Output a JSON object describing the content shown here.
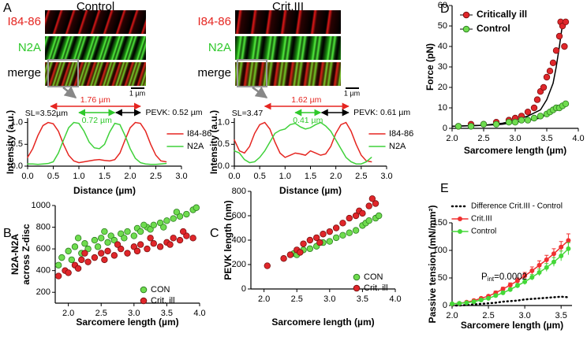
{
  "panel_a": {
    "letter": "A",
    "images": [
      {
        "title": "Control",
        "channels": [
          "I84-86",
          "N2A",
          "merge"
        ],
        "scale_bar": "1 µm"
      },
      {
        "title": "Crit.III",
        "channels": [
          "I84-86",
          "N2A",
          "merge"
        ],
        "scale_bar": "1 µm"
      }
    ]
  },
  "chart_data": [
    {
      "type": "line",
      "xlabel": "Distance (µm)",
      "ylabel": "Intensity (a.u.)",
      "xlim": [
        0,
        3.0
      ],
      "ylim": [
        0,
        1.1
      ],
      "xticks": [
        {
          "value": 0,
          "label": "0.0"
        },
        0.5,
        {
          "value": 1,
          "label": "1.0"
        },
        1.5,
        {
          "value": 2,
          "label": "2.0"
        },
        2.5,
        {
          "value": 3,
          "label": "3.0"
        }
      ],
      "yticks": [
        {
          "value": 0,
          "label": "0.0"
        },
        0.5,
        {
          "value": 1,
          "label": "1.0"
        }
      ],
      "annotations": [
        "1.76 µm",
        "SL=3.52µm",
        "0.72 µm",
        "PEVK: 0.52 µm"
      ],
      "x": [
        0,
        0.1,
        0.2,
        0.3,
        0.4,
        0.5,
        0.6,
        0.7,
        0.8,
        0.9,
        1.0,
        1.1,
        1.2,
        1.3,
        1.4,
        1.5,
        1.6,
        1.7,
        1.8,
        1.9,
        2.0,
        2.1,
        2.2,
        2.3,
        2.4,
        2.5,
        2.6,
        2.7
      ],
      "series": [
        {
          "name": "I84-86",
          "color": "#e52520",
          "values": [
            0.2,
            0.4,
            0.7,
            0.93,
            1.0,
            0.97,
            0.8,
            0.5,
            0.25,
            0.12,
            0.08,
            0.1,
            0.12,
            0.14,
            0.15,
            0.13,
            0.12,
            0.15,
            0.3,
            0.6,
            0.88,
            1.0,
            0.98,
            0.8,
            0.5,
            0.25,
            0.12,
            0.1
          ]
        },
        {
          "name": "N2A",
          "color": "#3fd13a",
          "values": [
            0.05,
            0.05,
            0.04,
            0.05,
            0.06,
            0.1,
            0.3,
            0.6,
            0.88,
            1.0,
            0.98,
            0.8,
            0.55,
            0.42,
            0.4,
            0.5,
            0.78,
            0.98,
            0.95,
            0.7,
            0.4,
            0.18,
            0.08,
            0.05,
            0.04,
            0.04,
            0.05,
            0.06
          ]
        }
      ]
    },
    {
      "type": "line",
      "xlabel": "Distance (µm)",
      "ylabel": "Intensity (a.u.)",
      "xlim": [
        0,
        3.0
      ],
      "ylim": [
        0,
        1.1
      ],
      "xticks": [
        {
          "value": 0,
          "label": "0.0"
        },
        0.5,
        {
          "value": 1,
          "label": "1.0"
        },
        1.5,
        {
          "value": 2,
          "label": "2.0"
        },
        2.5,
        {
          "value": 3,
          "label": "3.0"
        }
      ],
      "yticks": [
        {
          "value": 0,
          "label": "0.0"
        },
        0.5,
        {
          "value": 1,
          "label": "1.0"
        }
      ],
      "annotations": [
        "1.62 µm",
        "SL=3.47",
        "0.41 µm",
        "PEVK: 0.61 µm"
      ],
      "x": [
        0,
        0.1,
        0.2,
        0.3,
        0.4,
        0.5,
        0.6,
        0.7,
        0.8,
        0.9,
        1.0,
        1.1,
        1.2,
        1.3,
        1.4,
        1.5,
        1.6,
        1.7,
        1.8,
        1.9,
        2.0,
        2.1,
        2.2,
        2.3,
        2.4,
        2.5,
        2.6,
        2.7
      ],
      "series": [
        {
          "name": "I84-86",
          "color": "#e52520",
          "values": [
            0.6,
            0.35,
            0.3,
            0.45,
            0.75,
            0.95,
            1.0,
            0.85,
            0.55,
            0.3,
            0.2,
            0.25,
            0.3,
            0.28,
            0.25,
            0.35,
            0.3,
            0.25,
            0.28,
            0.45,
            0.75,
            0.95,
            1.0,
            0.8,
            0.5,
            0.25,
            0.12,
            0.1
          ]
        },
        {
          "name": "N2A",
          "color": "#3fd13a",
          "values": [
            0.35,
            0.3,
            0.15,
            0.08,
            0.1,
            0.2,
            0.35,
            0.55,
            0.75,
            0.82,
            0.85,
            0.95,
            0.98,
            0.9,
            0.85,
            0.88,
            0.95,
            1.0,
            0.92,
            0.8,
            0.6,
            0.4,
            0.2,
            0.1,
            0.05,
            0.05,
            0.1,
            0.2
          ]
        }
      ]
    },
    {
      "type": "scatter",
      "panel": "B",
      "xlabel": "Sarcomere length (µm)",
      "ylabel": [
        "N2A-N2A",
        "across Z-disc"
      ],
      "xlim": [
        1.8,
        4.0
      ],
      "ylim": [
        100,
        1000
      ],
      "xticks": [
        {
          "value": 2,
          "label": "2.0"
        },
        2.5,
        {
          "value": 3,
          "label": "3.0"
        },
        3.5,
        {
          "value": 4,
          "label": "4.0"
        }
      ],
      "yticks": [
        200,
        400,
        600,
        800,
        1000
      ],
      "series": [
        {
          "name": "CON",
          "color": "#6fdc4f",
          "edgecolor": "#2c7d20",
          "x": [
            1.85,
            1.9,
            2.0,
            2.05,
            2.1,
            2.2,
            2.25,
            2.3,
            2.4,
            2.45,
            2.5,
            2.6,
            2.65,
            2.7,
            2.8,
            2.85,
            2.9,
            3.0,
            3.05,
            3.1,
            3.2,
            3.25,
            3.3,
            3.4,
            3.45,
            3.5,
            3.6,
            3.7,
            3.8,
            3.9,
            3.95,
            2.15,
            2.55,
            3.15,
            3.65
          ],
          "values": [
            450,
            520,
            580,
            500,
            620,
            560,
            650,
            600,
            680,
            620,
            700,
            660,
            720,
            680,
            740,
            700,
            760,
            720,
            790,
            760,
            800,
            780,
            820,
            840,
            800,
            860,
            880,
            900,
            920,
            960,
            980,
            700,
            760,
            820,
            940
          ]
        },
        {
          "name": "Crit. ill",
          "color": "#e0262a",
          "edgecolor": "#7a1010",
          "x": [
            1.85,
            1.95,
            2.0,
            2.1,
            2.15,
            2.2,
            2.3,
            2.4,
            2.5,
            2.55,
            2.6,
            2.7,
            2.8,
            2.9,
            3.0,
            3.05,
            3.1,
            3.2,
            3.3,
            3.4,
            3.5,
            3.55,
            3.6,
            3.7,
            3.8,
            3.9,
            2.25,
            2.75,
            3.25,
            3.75
          ],
          "values": [
            350,
            400,
            380,
            450,
            420,
            500,
            480,
            520,
            560,
            500,
            580,
            540,
            600,
            560,
            620,
            580,
            640,
            600,
            650,
            620,
            660,
            640,
            700,
            680,
            720,
            700,
            560,
            640,
            700,
            760
          ]
        }
      ]
    },
    {
      "type": "scatter",
      "panel": "C",
      "xlabel": "Sarcomere length (µm)",
      "ylabel": "PEVK length (nm)",
      "xlim": [
        1.8,
        4.0
      ],
      "ylim": [
        0,
        800
      ],
      "xticks": [
        {
          "value": 2,
          "label": "2.0"
        },
        2.5,
        {
          "value": 3,
          "label": "3.0"
        },
        3.5,
        {
          "value": 4,
          "label": "4.0"
        }
      ],
      "yticks": [
        0,
        200,
        400,
        600,
        800
      ],
      "series": [
        {
          "name": "CON",
          "color": "#6fdc4f",
          "edgecolor": "#2c7d20",
          "x": [
            2.45,
            2.5,
            2.6,
            2.7,
            2.8,
            2.9,
            3.0,
            3.1,
            3.2,
            3.3,
            3.4,
            3.5,
            3.55,
            3.6,
            3.7,
            3.75
          ],
          "values": [
            290,
            280,
            320,
            330,
            350,
            380,
            390,
            420,
            440,
            460,
            480,
            520,
            540,
            560,
            580,
            600
          ]
        },
        {
          "name": "Crit. ill",
          "color": "#e0262a",
          "edgecolor": "#7a1010",
          "x": [
            2.05,
            2.3,
            2.4,
            2.5,
            2.55,
            2.6,
            2.7,
            2.8,
            2.85,
            2.9,
            3.0,
            3.1,
            3.2,
            3.3,
            3.4,
            3.45,
            3.5,
            3.6,
            3.65,
            3.7
          ],
          "values": [
            190,
            250,
            280,
            320,
            300,
            370,
            400,
            420,
            380,
            450,
            470,
            500,
            540,
            580,
            600,
            640,
            620,
            680,
            740,
            700
          ]
        }
      ]
    },
    {
      "type": "scatter",
      "panel": "D",
      "xlabel": "Sarcomere length (µm)",
      "ylabel": "Force (pN)",
      "xlim": [
        2.0,
        4.0
      ],
      "ylim": [
        0,
        60
      ],
      "xticks": [
        {
          "value": 2,
          "label": "2.0"
        },
        2.5,
        {
          "value": 3,
          "label": "3.0"
        },
        3.5,
        {
          "value": 4,
          "label": "4.0"
        }
      ],
      "yticks": [
        0,
        10,
        20,
        30,
        40,
        50,
        60
      ],
      "series": [
        {
          "name": "Critically ill",
          "color": "#e0262a",
          "edgecolor": "#7a1010",
          "x": [
            2.1,
            2.3,
            2.5,
            2.7,
            2.9,
            3.0,
            3.1,
            3.2,
            3.3,
            3.35,
            3.4,
            3.45,
            3.5,
            3.55,
            3.6,
            3.65,
            3.7,
            3.72,
            3.75,
            3.78,
            3.8
          ],
          "values": [
            1,
            2,
            2,
            3,
            4,
            5,
            6,
            8,
            10,
            14,
            18,
            20,
            25,
            28,
            32,
            38,
            45,
            52,
            50,
            40,
            52
          ]
        },
        {
          "name": "Control",
          "color": "#6fdc4f",
          "edgecolor": "#2c7d20",
          "x": [
            2.1,
            2.3,
            2.5,
            2.7,
            2.9,
            3.0,
            3.1,
            3.2,
            3.3,
            3.4,
            3.5,
            3.55,
            3.6,
            3.65,
            3.7,
            3.75,
            3.8
          ],
          "values": [
            1,
            1,
            2,
            2,
            3,
            3,
            4,
            4,
            5,
            6,
            7,
            8,
            9,
            10,
            10,
            11,
            12
          ]
        }
      ],
      "fits": [
        {
          "color": "#000000",
          "x": [
            2.0,
            2.5,
            2.8,
            3.0,
            3.2,
            3.4,
            3.5,
            3.6,
            3.65,
            3.7,
            3.75
          ],
          "values": [
            1,
            1.5,
            2.5,
            4,
            6,
            9,
            14,
            22,
            30,
            40,
            51
          ]
        },
        {
          "color": "#000000",
          "x": [
            2.0,
            2.5,
            2.8,
            3.0,
            3.2,
            3.4,
            3.5,
            3.6,
            3.65,
            3.7,
            3.8
          ],
          "values": [
            1,
            1.5,
            2,
            3,
            4,
            5,
            7,
            8,
            9,
            10,
            12
          ]
        }
      ]
    },
    {
      "type": "line",
      "panel": "E",
      "markers": true,
      "xlabel": "Sarcomere length (µm)",
      "ylabel": "Passive tension (mN/mm²)",
      "xlim": [
        2.0,
        3.65
      ],
      "ylim": [
        0,
        150
      ],
      "xticks": [
        {
          "value": 2,
          "label": "2.0"
        },
        2.5,
        {
          "value": 3,
          "label": "3.0"
        },
        3.5
      ],
      "yticks": [
        0,
        50,
        100,
        150
      ],
      "annotation": {
        "base": "P",
        "subscript": "int",
        "text": "=0.0002"
      },
      "x": [
        2.0,
        2.1,
        2.2,
        2.3,
        2.4,
        2.5,
        2.6,
        2.7,
        2.8,
        2.9,
        3.0,
        3.1,
        3.2,
        3.3,
        3.4,
        3.5,
        3.6
      ],
      "series": [
        {
          "name": "Difference Crit.III - Control",
          "color": "#000000",
          "dash": "dotted",
          "values": [
            0,
            0,
            1,
            2,
            3,
            4,
            5,
            7,
            8,
            9,
            11,
            12,
            13,
            14,
            15,
            16,
            15
          ]
        },
        {
          "name": "Crit.III",
          "color": "#f03030",
          "values": [
            3,
            4,
            6,
            9,
            13,
            17,
            23,
            30,
            37,
            45,
            54,
            63,
            73,
            83,
            94,
            106,
            118
          ],
          "errors": [
            1,
            1,
            1,
            2,
            2,
            2,
            3,
            3,
            4,
            5,
            6,
            7,
            8,
            8,
            9,
            10,
            12
          ]
        },
        {
          "name": "Control",
          "color": "#44d838",
          "values": [
            3,
            4,
            5,
            7,
            10,
            13,
            18,
            23,
            29,
            36,
            43,
            51,
            60,
            69,
            79,
            90,
            103
          ],
          "errors": [
            1,
            1,
            1,
            1,
            2,
            2,
            2,
            3,
            3,
            4,
            5,
            5,
            6,
            7,
            8,
            9,
            11
          ]
        }
      ]
    }
  ]
}
